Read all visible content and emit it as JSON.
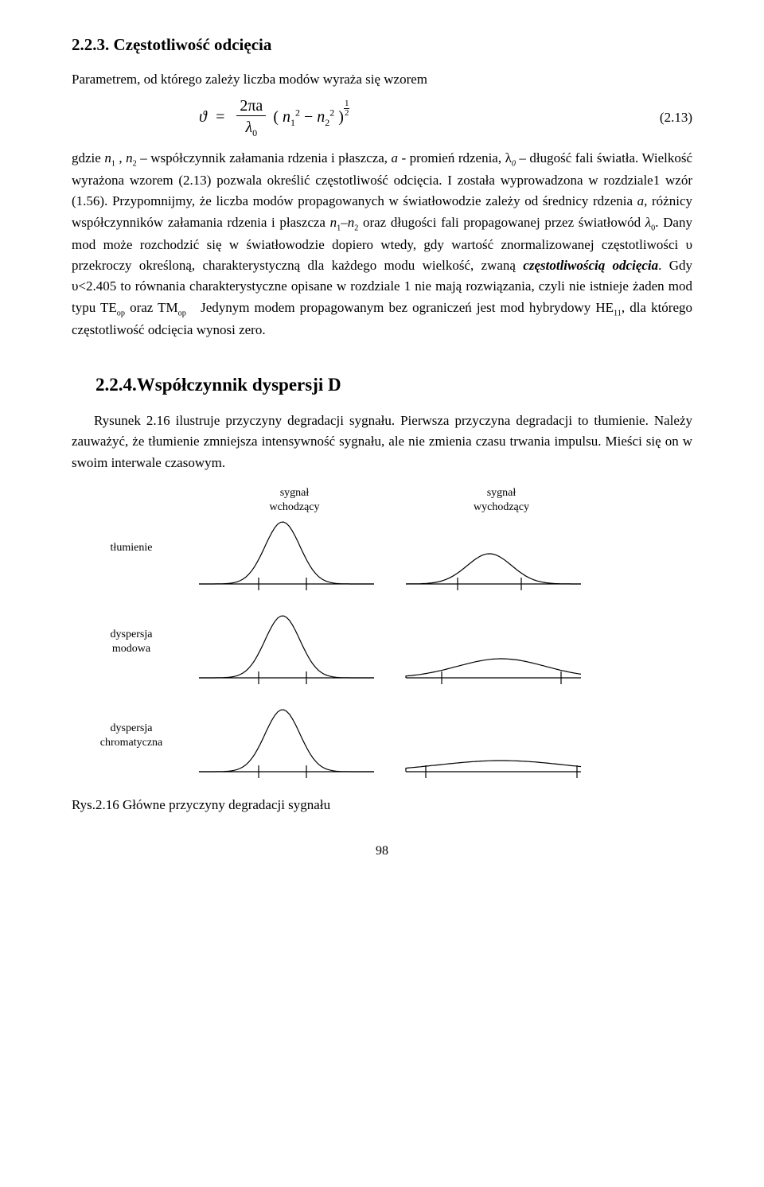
{
  "section223": {
    "title": "2.2.3. Częstotliwość odcięcia",
    "intro": "Parametrem, od którego zależy liczba modów wyraża się wzorem",
    "eq_num": "(2.13)",
    "formula": {
      "theta": "ϑ",
      "eq": "=",
      "two_pi_a": "2πa",
      "lambda0": "λ",
      "lambda0_sub": "0",
      "open": "( ",
      "n": "n",
      "sup2": "2",
      "sub1": "1",
      "minus": " − ",
      "sub2": "2",
      "close": " )",
      "half_n": "1",
      "half_d": "2"
    },
    "body_html": "gdzie <span class='it'>n<span class='sub'>1</span></span> , <span class='it'>n<span class='sub'>2</span></span> – współczynnik załamania rdzenia i płaszcza, <span class='it'>a</span> - promień rdzenia, λ<span class='it sub'>0</span> – długość fali światła. Wielkość wyrażona wzorem (2.13) pozwala określić częstotliwość odcięcia. I została wyprowadzona w rozdziale1 wzór (1.56). Przypomnijmy, że liczba modów propagowanych w światłowodzie zależy od średnicy  rdzenia <span class='it'>a</span>, różnicy współczynników załamania rdzenia i płaszcza <span class='it'>n<span class='sub'>1</span>–n<span class='sub'>2</span></span> oraz długości fali propagowanej przez światłowód <span class='it'>λ<span class='sub'>0</span></span>. Dany mod może rozchodzić się w światłowodzie dopiero wtedy, gdy wartość znormalizowanej częstotliwości υ przekroczy określoną, charakterystyczną dla każdego modu wielkość, zwaną <span class='bi'>częstotliwością odcięcia</span>. Gdy υ&lt;2.405 to równania charakterystyczne opisane w rozdziale 1 nie mają rozwiązania, czyli  nie istnieje żaden mod typu TE<span class='sub'>op</span> oraz TM<span class='sub'>op</span>&nbsp;&nbsp; Jedynym modem propagowanym bez ograniczeń jest mod hybrydowy HE<span class='sub'>11</span>, dla którego częstotliwość odcięcia wynosi zero."
  },
  "section224": {
    "title": "2.2.4.Współczynnik dyspersji D",
    "body_html": "Rysunek 2.16 ilustruje przyczyny degradacji sygnału. Pierwsza przyczyna degradacji to tłumienie. Należy zauważyć, że tłumienie zmniejsza intensywność sygnału, ale nie zmienia czasu trwania impulsu. Mieści się on w swoim interwale czasowym."
  },
  "figure": {
    "type": "infographic",
    "top_labels": [
      "sygnał\nwchodzący",
      "sygnał\nwychodzący"
    ],
    "rows": [
      {
        "label": "tłumienie",
        "left": {
          "baseline": 230,
          "center": 115,
          "peak_h": 78,
          "sigma": 22,
          "ticks": [
            85,
            145
          ]
        },
        "right": {
          "baseline": 230,
          "center": 115,
          "peak_h": 38,
          "sigma": 28,
          "ticks": [
            75,
            155
          ]
        }
      },
      {
        "label": "dyspersja\nmodowa",
        "left": {
          "baseline": 230,
          "center": 115,
          "peak_h": 78,
          "sigma": 22,
          "ticks": [
            85,
            145
          ]
        },
        "right": {
          "baseline": 230,
          "center": 130,
          "peak_h": 24,
          "sigma": 55,
          "ticks": [
            55,
            205
          ]
        }
      },
      {
        "label": "dyspersja\nchromatyczna",
        "left": {
          "baseline": 230,
          "center": 115,
          "peak_h": 78,
          "sigma": 22,
          "ticks": [
            85,
            145
          ]
        },
        "right": {
          "baseline": 230,
          "center": 130,
          "peak_h": 14,
          "sigma": 80,
          "ticks": [
            35,
            225
          ]
        }
      }
    ],
    "stroke": "#000000",
    "stroke_width": 1.2,
    "tick_height": 8,
    "caption": "Rys.2.16  Główne przyczyny degradacji sygnału"
  },
  "page_number": "98"
}
